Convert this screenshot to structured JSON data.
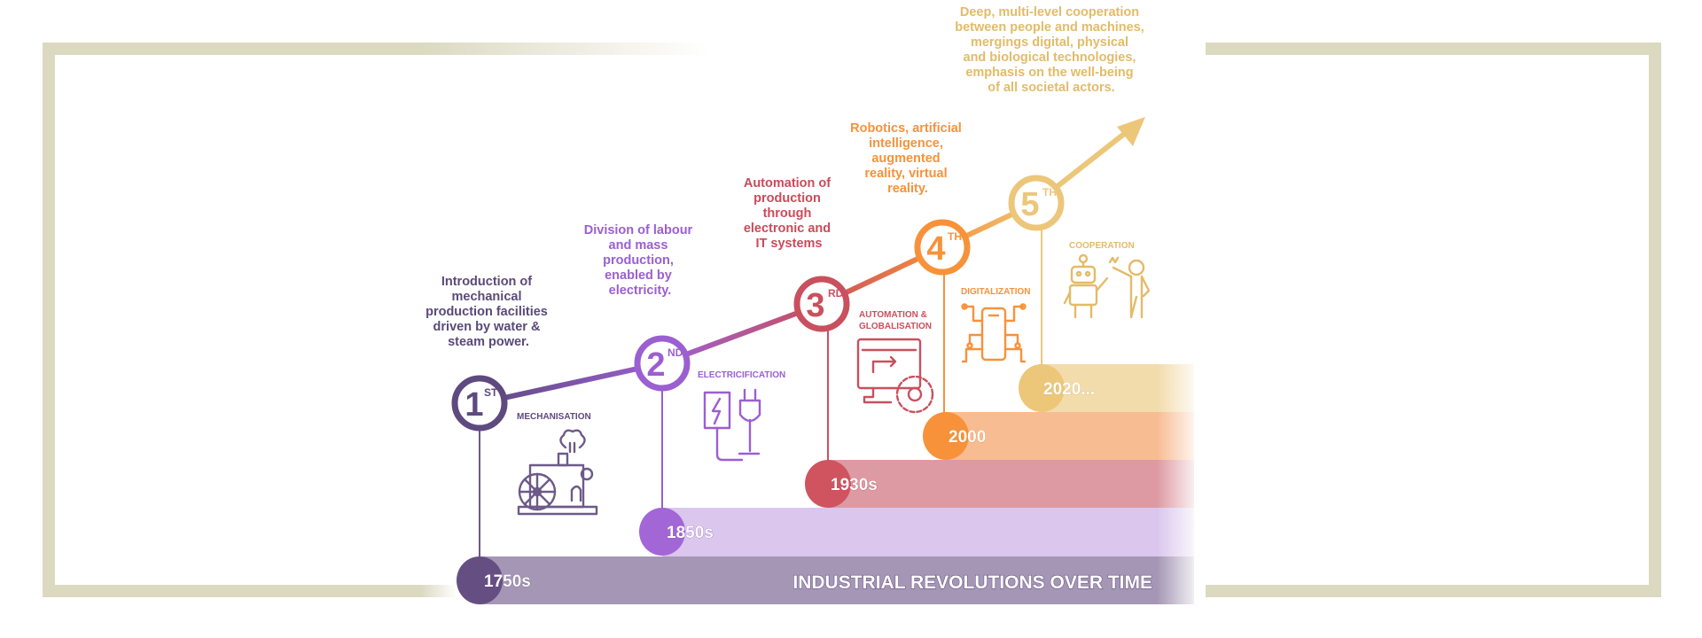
{
  "title": "INDUSTRIAL REVOLUTIONS OVER TIME",
  "colors": {
    "frame": "#dcd9c1",
    "stage1": "#5e4a7e",
    "stage2": "#9b5fd1",
    "stage3": "#c9505e",
    "stage4": "#f7923a",
    "stage5": "#ecc77a"
  },
  "stages": [
    {
      "number": "1",
      "suffix": "ST",
      "label": [
        "MECHANISATION"
      ],
      "year": "1750s",
      "icon": "steam-engine-icon",
      "description": [
        "Introduction of",
        "mechanical",
        "production facilities",
        "driven by water &",
        "steam power."
      ]
    },
    {
      "number": "2",
      "suffix": "ND",
      "label": [
        "ELECTRICIFICATION"
      ],
      "year": "1850s",
      "icon": "electric-plug-icon",
      "description": [
        "Division of labour",
        "and mass",
        "production,",
        "enabled by",
        "electricity."
      ]
    },
    {
      "number": "3",
      "suffix": "RD",
      "label": [
        "AUTOMATION &",
        "GLOBALISATION"
      ],
      "year": "1930s",
      "icon": "computer-gear-icon",
      "description": [
        "Automation of",
        "production",
        "through",
        "electronic and",
        "IT systems"
      ]
    },
    {
      "number": "4",
      "suffix": "TH",
      "label": [
        "DIGITALIZATION"
      ],
      "year": "2000",
      "icon": "circuit-chip-icon",
      "description": [
        "Robotics, artificial",
        "intelligence,",
        "augmented",
        "reality, virtual",
        "reality."
      ]
    },
    {
      "number": "5",
      "suffix": "TH",
      "label": [
        "COOPERATION"
      ],
      "year": "2020...",
      "icon": "robot-human-icon",
      "description": [
        "Deep, multi-level cooperation",
        "between people and machines,",
        "mergings digital, physical",
        "and biological technologies,",
        "emphasis on the well-being",
        "of all societal actors."
      ]
    }
  ]
}
